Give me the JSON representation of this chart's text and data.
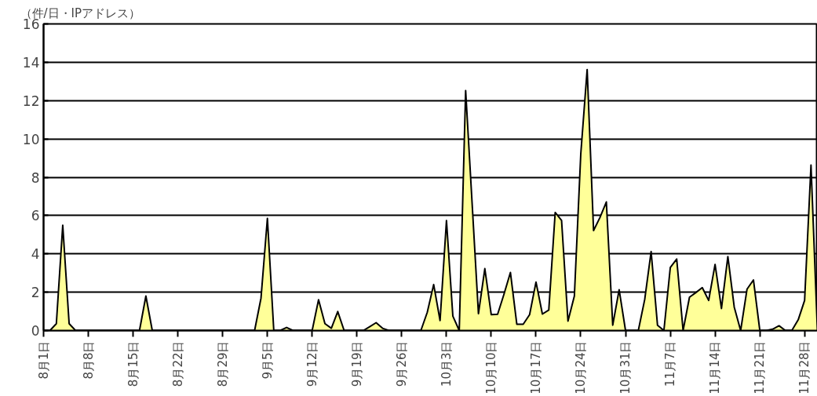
{
  "chart_data": {
    "type": "area",
    "ylabel": "（件/日・IPアドレス）",
    "categories": [
      "8月1日",
      null,
      null,
      null,
      null,
      null,
      null,
      "8月8日",
      null,
      null,
      null,
      null,
      null,
      null,
      "8月15日",
      null,
      null,
      null,
      null,
      null,
      null,
      "8月22日",
      null,
      null,
      null,
      null,
      null,
      null,
      "8月29日",
      null,
      null,
      null,
      null,
      null,
      null,
      "9月5日",
      null,
      null,
      null,
      null,
      null,
      null,
      "9月12日",
      null,
      null,
      null,
      null,
      null,
      null,
      "9月19日",
      null,
      null,
      null,
      null,
      null,
      null,
      "9月26日",
      null,
      null,
      null,
      null,
      null,
      null,
      "10月3日",
      null,
      null,
      null,
      null,
      null,
      null,
      "10月10日",
      null,
      null,
      null,
      null,
      null,
      null,
      "10月17日",
      null,
      null,
      null,
      null,
      null,
      null,
      "10月24日",
      null,
      null,
      null,
      null,
      null,
      null,
      "10月31日",
      null,
      null,
      null,
      null,
      null,
      null,
      "11月7日",
      null,
      null,
      null,
      null,
      null,
      null,
      "11月14日",
      null,
      null,
      null,
      null,
      null,
      null,
      "11月21日",
      null,
      null,
      null,
      null,
      null,
      null,
      "11月28日",
      null,
      null
    ],
    "series": [
      {
        "color": "#ffff99",
        "values": [
          0,
          0,
          0.36,
          5.49,
          0.36,
          0,
          0,
          0,
          0,
          0,
          0,
          0,
          0,
          0,
          0,
          0,
          1.8,
          0,
          0,
          0,
          0,
          0,
          0,
          0,
          0,
          0,
          0,
          0,
          0,
          0,
          0,
          0,
          0,
          0,
          1.69,
          5.85,
          0,
          0,
          0.16,
          0,
          0,
          0,
          0,
          1.61,
          0.36,
          0.12,
          0.99,
          0,
          0,
          0,
          0,
          0.2,
          0.41,
          0.12,
          0,
          0,
          0,
          0,
          0,
          0,
          0.95,
          2.4,
          0.52,
          5.74,
          0.75,
          0,
          12.52,
          6.7,
          0.88,
          3.23,
          0.83,
          0.85,
          1.9,
          3.03,
          0.33,
          0.33,
          0.83,
          2.53,
          0.86,
          1.07,
          6.16,
          5.74,
          0.49,
          1.8,
          9.2,
          13.62,
          5.22,
          5.9,
          6.71,
          0.28,
          2.13,
          0,
          0,
          0,
          1.62,
          4.12,
          0.28,
          0,
          3.29,
          3.73,
          0,
          1.74,
          1.98,
          2.24,
          1.57,
          3.45,
          1.15,
          3.86,
          1.22,
          0,
          2.16,
          2.64,
          0,
          0,
          0.07,
          0.25,
          0,
          0,
          0.56,
          1.57,
          8.63,
          0
        ]
      }
    ],
    "ylim": [
      0,
      16
    ],
    "yticks": [
      0,
      2,
      4,
      6,
      8,
      10,
      12,
      14,
      16
    ],
    "grid": "y"
  }
}
